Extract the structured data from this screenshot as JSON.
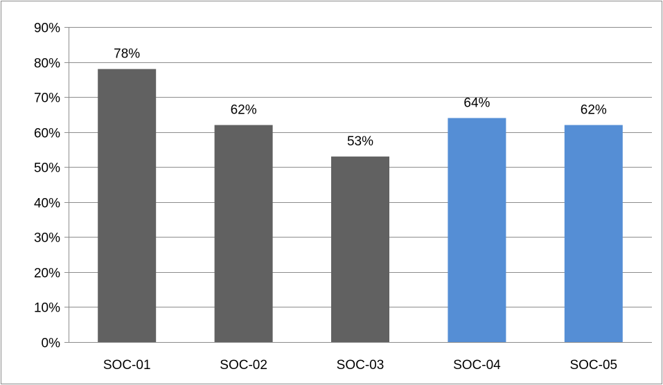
{
  "chart_data": {
    "type": "bar",
    "categories": [
      "SOC-01",
      "SOC-02",
      "SOC-03",
      "SOC-04",
      "SOC-05"
    ],
    "values": [
      78,
      62,
      53,
      64,
      62
    ],
    "value_labels": [
      "78%",
      "62%",
      "53%",
      "64%",
      "62%"
    ],
    "bar_colors": [
      "#616161",
      "#616161",
      "#616161",
      "#558ed5",
      "#558ed5"
    ],
    "ylim": [
      0,
      90
    ],
    "yticks": [
      0,
      10,
      20,
      30,
      40,
      50,
      60,
      70,
      80,
      90
    ],
    "ytick_labels": [
      "0%",
      "10%",
      "20%",
      "30%",
      "40%",
      "50%",
      "60%",
      "70%",
      "80%",
      "90%"
    ],
    "grid": true,
    "gridline_color": "#8c8c8c",
    "legend": "none"
  }
}
